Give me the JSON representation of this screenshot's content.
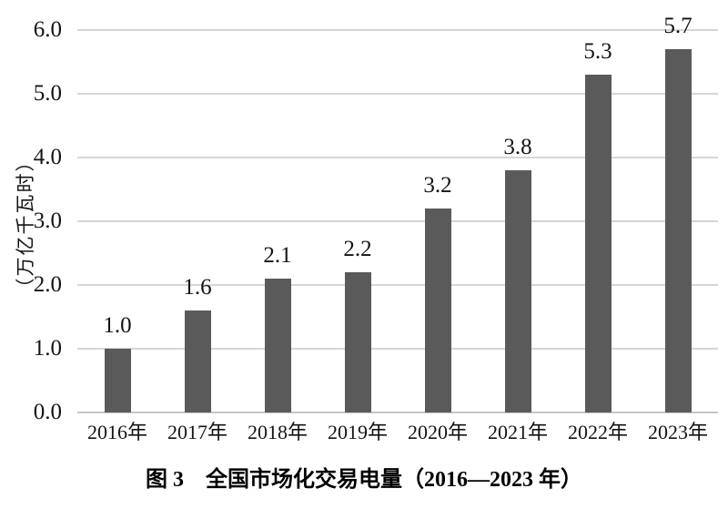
{
  "figure": {
    "caption": "图 3　全国市场化交易电量（2016—2023 年）"
  },
  "chart_data": {
    "type": "bar",
    "title": "图 3 全国市场化交易电量（2016—2023 年）",
    "categories": [
      "2016年",
      "2017年",
      "2018年",
      "2019年",
      "2020年",
      "2021年",
      "2022年",
      "2023年"
    ],
    "values": [
      1.0,
      1.6,
      2.1,
      2.2,
      3.2,
      3.8,
      5.3,
      5.7
    ],
    "bar_labels": [
      "1.0",
      "1.6",
      "2.1",
      "2.2",
      "3.2",
      "3.8",
      "5.3",
      "5.7"
    ],
    "xlabel": "",
    "ylabel": "（万亿千瓦时）",
    "ylim": [
      0,
      6
    ],
    "yticks": [
      "0.0",
      "1.0",
      "2.0",
      "3.0",
      "4.0",
      "5.0",
      "6.0"
    ],
    "grid": "horizontal",
    "legend": "none",
    "colors": {
      "bar": "#5a5a5a",
      "gridline": "#d6d6d6",
      "axis_line": "#c6c6c6",
      "text": "#141414"
    }
  }
}
